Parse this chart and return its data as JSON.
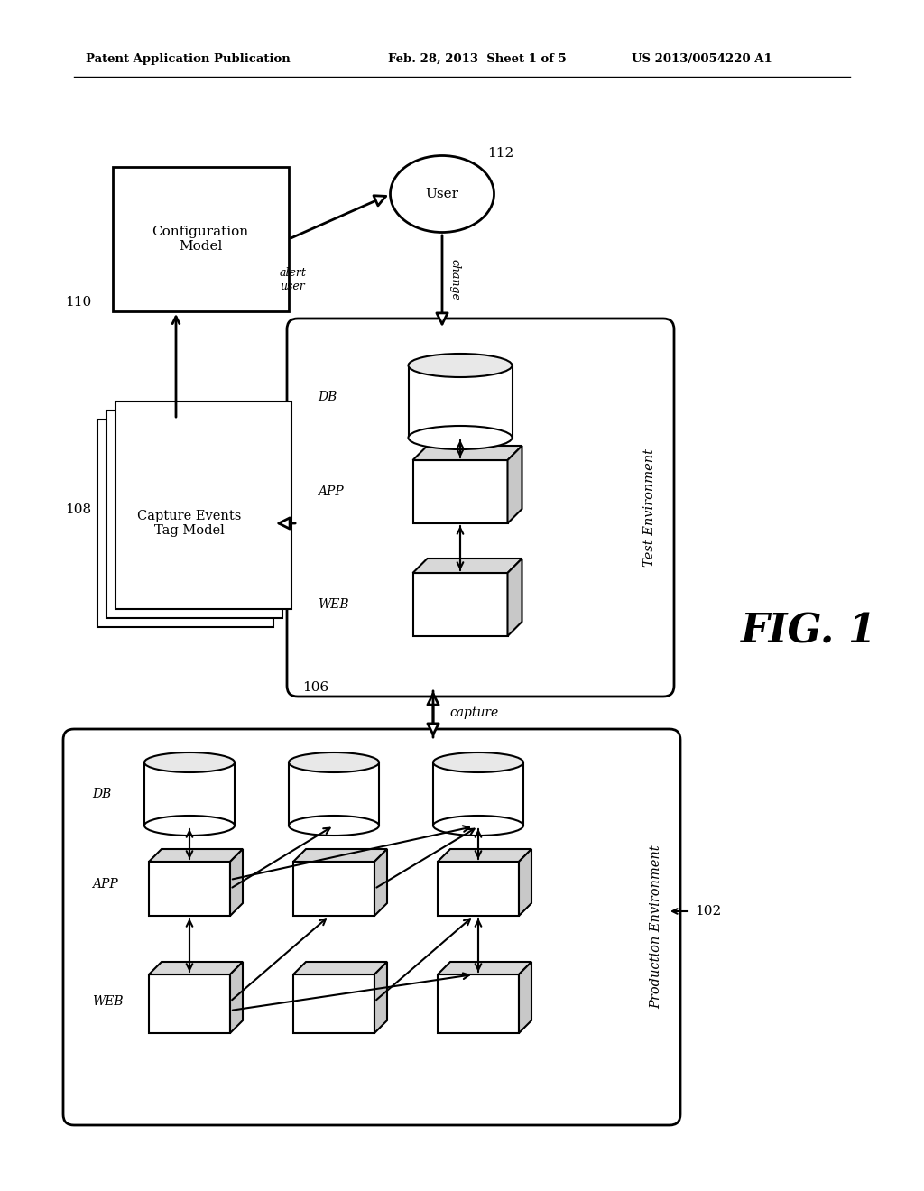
{
  "bg_color": "#ffffff",
  "header_left": "Patent Application Publication",
  "header_mid": "Feb. 28, 2013  Sheet 1 of 5",
  "header_right": "US 2013/0054220 A1",
  "fig_label": "FIG. 1",
  "labels": {
    "config_model": "Configuration\nModel",
    "user": "User",
    "user_num": "112",
    "capture": "Capture Events\nTag Model",
    "alert_user": "alert\nuser",
    "change": "change",
    "capture_label": "capture",
    "test_env": "Test Environment",
    "prod_env": "Production Environment",
    "db": "DB",
    "app": "APP",
    "web": "WEB",
    "num_110": "110",
    "num_108": "108",
    "num_106": "106",
    "num_102": "102"
  }
}
